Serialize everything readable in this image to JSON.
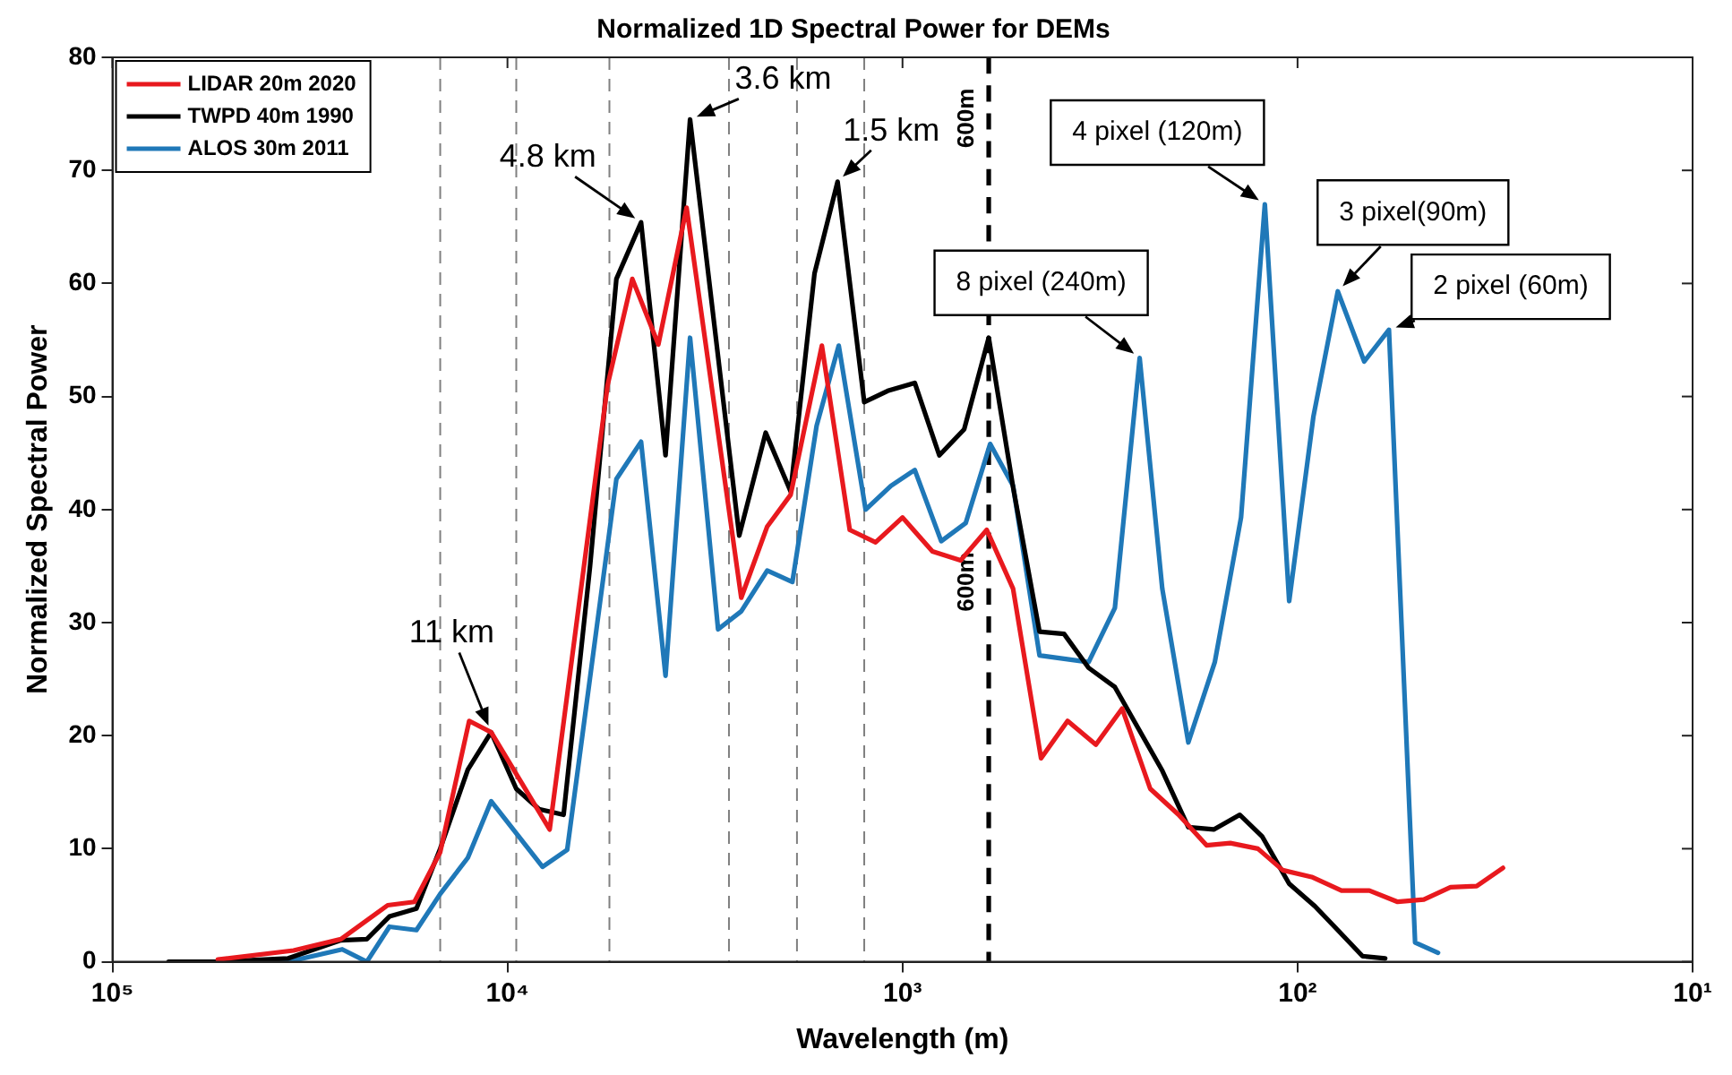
{
  "chart_data": {
    "type": "line",
    "title": "Normalized 1D Spectral Power for DEMs",
    "xlabel": "Wavelength (m)",
    "ylabel": "Normalized Spectral Power",
    "log": "x",
    "xlim": [
      100000,
      10
    ],
    "xticks": [
      {
        "value": 100000,
        "label": "10⁵"
      },
      {
        "value": 10000,
        "label": "10⁴"
      },
      {
        "value": 1000,
        "label": "10³"
      },
      {
        "value": 100,
        "label": "10²"
      },
      {
        "value": 10,
        "label": "10¹"
      }
    ],
    "ylim": [
      0,
      80
    ],
    "yticks": [
      0,
      10,
      20,
      30,
      40,
      50,
      60,
      70,
      80
    ],
    "legend": "top left",
    "grid": false,
    "marker": "none",
    "line_style": "solid",
    "series": [
      {
        "name": "LIDAR 20m 2020",
        "color": "#e8191e",
        "x": [
          54100,
          34800,
          26400,
          20100,
          17200,
          14800,
          12500,
          11000,
          7820,
          5580,
          4830,
          4150,
          3520,
          2560,
          2200,
          1920,
          1600,
          1360,
          1170,
          1000,
          840,
          713,
          612,
          525,
          446,
          382,
          324,
          278,
          236,
          200,
          170,
          148,
          126,
          109,
          92.1,
          77.4,
          65.8,
          55.8,
          47.9,
          41,
          35.2,
          30.2
        ],
        "values": [
          0.2,
          1,
          2,
          5,
          5.3,
          9.7,
          21.3,
          20.3,
          11.7,
          51,
          60.4,
          54.6,
          66.7,
          32.2,
          38.5,
          41.3,
          54.5,
          38.2,
          37.1,
          39.3,
          36.3,
          35.5,
          38.2,
          33,
          18,
          21.3,
          19.2,
          22.4,
          15.3,
          13,
          10.3,
          10.5,
          10,
          8.1,
          7.5,
          6.3,
          6.3,
          5.3,
          5.5,
          6.6,
          6.7,
          8.3
        ]
      },
      {
        "name": "TWPD 40m 1990",
        "color": "#000000",
        "x": [
          72100,
          54100,
          35900,
          26400,
          22700,
          19900,
          17000,
          14800,
          12600,
          11000,
          9500,
          8320,
          7210,
          6180,
          5300,
          4590,
          3980,
          3450,
          2590,
          2220,
          1920,
          1670,
          1460,
          1250,
          1090,
          931,
          807,
          698,
          605,
          525,
          450,
          390,
          338,
          290,
          220,
          189,
          163,
          140,
          123,
          105,
          90.3,
          79.1,
          68.5,
          60
        ],
        "values": [
          0,
          0,
          0.3,
          1.9,
          2,
          4,
          4.7,
          10,
          17,
          20.3,
          15.3,
          13.5,
          13,
          35,
          60.4,
          65.4,
          44.8,
          74.5,
          37.7,
          46.8,
          41.6,
          60.9,
          69,
          49.5,
          50.5,
          51.2,
          44.8,
          47.1,
          55.2,
          42,
          29.2,
          29,
          26,
          24.3,
          16.9,
          11.9,
          11.7,
          13,
          11.1,
          6.9,
          4.9,
          2.8,
          0.5,
          0.3
        ]
      },
      {
        "name": "ALOS 30m 2011",
        "color": "#1f78b8",
        "x": [
          54100,
          35900,
          26200,
          22700,
          19900,
          17000,
          14800,
          12600,
          11000,
          8150,
          7060,
          5300,
          4590,
          3980,
          3450,
          2930,
          2560,
          2200,
          1900,
          1650,
          1450,
          1240,
          1070,
          931,
          798,
          692,
          600,
          525,
          450,
          338,
          290,
          251,
          220,
          189,
          162,
          139,
          121,
          105,
          91.2,
          79.1,
          67.8,
          58.7,
          50.4,
          44.1
        ],
        "values": [
          0,
          0,
          1.1,
          0,
          3.1,
          2.8,
          6,
          9.2,
          14.2,
          8.4,
          9.9,
          42.7,
          46,
          25.3,
          55.2,
          29.4,
          31,
          34.6,
          33.6,
          47.4,
          54.5,
          40,
          42.1,
          43.5,
          37.2,
          38.8,
          45.8,
          42.1,
          27.1,
          26.5,
          31.3,
          53.4,
          33,
          19.4,
          26.5,
          39.3,
          67,
          31.9,
          48.2,
          59.3,
          53.1,
          55.9,
          1.7,
          0.8
        ]
      }
    ],
    "ref_lines": [
      {
        "axis": "x",
        "value": 605,
        "label": "600m",
        "color": "#000000",
        "line_style": "dashed"
      },
      {
        "axis": "x",
        "value": 14800,
        "color": "#808080",
        "line_style": "dashed"
      },
      {
        "axis": "x",
        "value": 9500,
        "color": "#808080",
        "line_style": "dashed"
      },
      {
        "axis": "x",
        "value": 5520,
        "color": "#808080",
        "line_style": "dashed"
      },
      {
        "axis": "x",
        "value": 2750,
        "color": "#808080",
        "line_style": "dashed"
      },
      {
        "axis": "x",
        "value": 1850,
        "color": "#808080",
        "line_style": "dashed"
      },
      {
        "axis": "x",
        "value": 1250,
        "color": "#808080",
        "line_style": "dashed"
      }
    ],
    "annotations": [
      {
        "text": "11 km",
        "x": 11000,
        "y": 20.3
      },
      {
        "text": "4.8 km",
        "x": 4590,
        "y": 65.4
      },
      {
        "text": "3.6 km",
        "x": 3450,
        "y": 74.5
      },
      {
        "text": "1.5 km",
        "x": 1460,
        "y": 69
      },
      {
        "text": "8 pixel (240m)",
        "x": 251,
        "y": 53.4
      },
      {
        "text": "4 pixel (120m)",
        "x": 121,
        "y": 67
      },
      {
        "text": "3 pixel(90m)",
        "x": 79.1,
        "y": 59.3
      },
      {
        "text": "2 pixel (60m)",
        "x": 58.7,
        "y": 55.9
      }
    ]
  }
}
